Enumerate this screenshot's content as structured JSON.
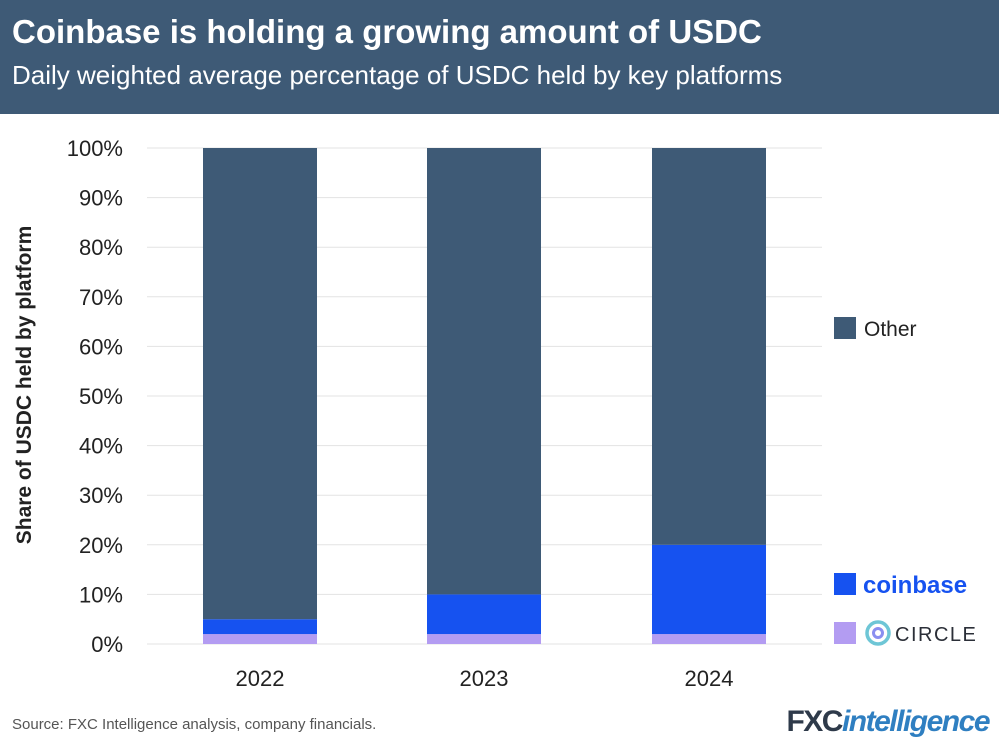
{
  "header": {
    "title": "Coinbase is holding a growing amount of USDC",
    "subtitle": "Daily weighted average percentage of USDC held by key platforms"
  },
  "footer": {
    "source": "Source: FXC Intelligence analysis, company financials.",
    "brand_part1": "FXC",
    "brand_part2": "intelligence"
  },
  "colors": {
    "header_bg": "#3e5a76",
    "other": "#3e5a76",
    "coinbase": "#1652f0",
    "circle": "#b39cf2",
    "circle_logo": "#6ec6d6",
    "grid": "#e3e3e3"
  },
  "chart_data": {
    "type": "bar",
    "stacked": true,
    "categories": [
      "2022",
      "2023",
      "2024"
    ],
    "series": [
      {
        "name": "CIRCLE",
        "values": [
          2,
          2,
          2
        ],
        "color": "#b39cf2",
        "icon": "circle-logo-icon"
      },
      {
        "name": "coinbase",
        "values": [
          3,
          8,
          18
        ],
        "color": "#1652f0",
        "icon": "coinbase-logo"
      },
      {
        "name": "Other",
        "values": [
          95,
          90,
          80
        ],
        "color": "#3e5a76"
      }
    ],
    "ylabel": "Share of USDC held by platform",
    "xlabel": "",
    "ylim": [
      0,
      100
    ],
    "yticks": [
      "0%",
      "10%",
      "20%",
      "30%",
      "40%",
      "50%",
      "60%",
      "70%",
      "80%",
      "90%",
      "100%"
    ],
    "grid": true,
    "legend_position": "right"
  }
}
